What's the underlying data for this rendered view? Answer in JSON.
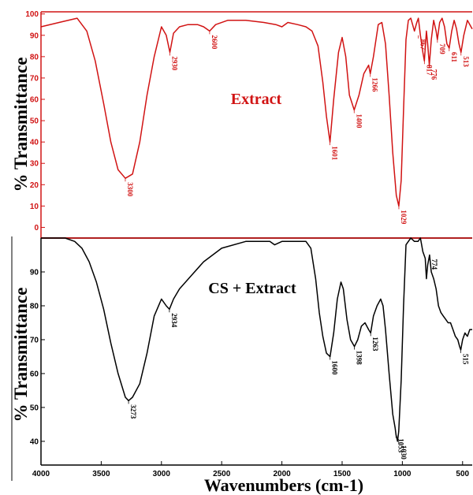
{
  "chart_data": [
    {
      "type": "line",
      "ylabel": "% Transmittance",
      "legend": "Extract",
      "color": "#d11313",
      "xlim": [
        4000,
        420
      ],
      "ylim": [
        -5,
        101
      ],
      "yticks": [
        0,
        10,
        20,
        30,
        40,
        50,
        60,
        70,
        80,
        90,
        100
      ],
      "grid": false,
      "series": [
        {
          "name": "Extract",
          "x": [
            4000,
            3850,
            3700,
            3620,
            3550,
            3480,
            3420,
            3360,
            3300,
            3240,
            3180,
            3120,
            3060,
            3000,
            2960,
            2930,
            2900,
            2850,
            2780,
            2700,
            2650,
            2600,
            2550,
            2450,
            2300,
            2150,
            2050,
            2000,
            1950,
            1870,
            1800,
            1750,
            1700,
            1660,
            1630,
            1601,
            1570,
            1530,
            1500,
            1470,
            1440,
            1400,
            1360,
            1320,
            1280,
            1266,
            1240,
            1200,
            1170,
            1140,
            1110,
            1080,
            1050,
            1029,
            1010,
            990,
            970,
            950,
            930,
            900,
            880,
            867,
            850,
            830,
            817,
            800,
            790,
            776,
            760,
            740,
            720,
            709,
            690,
            670,
            650,
            630,
            611,
            590,
            570,
            550,
            530,
            513,
            490,
            460,
            420
          ],
          "y": [
            94,
            96,
            98,
            92,
            78,
            58,
            40,
            27,
            23,
            25,
            40,
            62,
            80,
            94,
            90,
            82,
            91,
            94,
            95,
            95,
            94,
            92,
            95,
            97,
            97,
            96,
            95,
            94,
            96,
            95,
            94,
            92,
            85,
            68,
            52,
            40,
            60,
            82,
            89,
            80,
            62,
            55,
            62,
            72,
            76,
            72,
            80,
            95,
            96,
            86,
            62,
            35,
            15,
            10,
            22,
            55,
            88,
            97,
            98,
            92,
            96,
            98,
            90,
            82,
            78,
            92,
            86,
            76,
            88,
            97,
            92,
            88,
            96,
            98,
            94,
            86,
            84,
            92,
            97,
            93,
            86,
            82,
            90,
            97,
            93
          ]
        }
      ],
      "annotations": [
        {
          "x": 3300,
          "y": 23,
          "label": "3300"
        },
        {
          "x": 2930,
          "y": 82,
          "label": "2930"
        },
        {
          "x": 2600,
          "y": 92,
          "label": "2600"
        },
        {
          "x": 1601,
          "y": 40,
          "label": "1601"
        },
        {
          "x": 1400,
          "y": 55,
          "label": "1400"
        },
        {
          "x": 1266,
          "y": 72,
          "label": "1266"
        },
        {
          "x": 1029,
          "y": 10,
          "label": "1029"
        },
        {
          "x": 867,
          "y": 90,
          "label": "867"
        },
        {
          "x": 817,
          "y": 78,
          "label": "817"
        },
        {
          "x": 776,
          "y": 76,
          "label": "776"
        },
        {
          "x": 709,
          "y": 88,
          "label": "709"
        },
        {
          "x": 611,
          "y": 84,
          "label": "611"
        },
        {
          "x": 513,
          "y": 82,
          "label": "513"
        }
      ]
    },
    {
      "type": "line",
      "ylabel": "% Transmittance",
      "xlabel": "Wavenumbers (cm-1)",
      "legend": "CS + Extract",
      "color": "#000000",
      "xlim": [
        4000,
        420
      ],
      "ylim": [
        33,
        100
      ],
      "yticks": [
        40,
        50,
        60,
        70,
        80,
        90
      ],
      "xticks": [
        4000,
        3500,
        3000,
        2500,
        2000,
        1500,
        1000,
        500
      ],
      "grid": false,
      "series": [
        {
          "name": "CS + Extract",
          "x": [
            4000,
            3900,
            3800,
            3720,
            3660,
            3600,
            3540,
            3480,
            3420,
            3360,
            3300,
            3273,
            3240,
            3180,
            3120,
            3060,
            3000,
            2960,
            2934,
            2900,
            2850,
            2750,
            2650,
            2500,
            2300,
            2100,
            2060,
            2000,
            1940,
            1860,
            1800,
            1760,
            1720,
            1690,
            1660,
            1630,
            1600,
            1570,
            1540,
            1510,
            1490,
            1460,
            1430,
            1398,
            1370,
            1340,
            1310,
            1280,
            1263,
            1240,
            1210,
            1180,
            1160,
            1140,
            1110,
            1080,
            1060,
            1053,
            1040,
            1030,
            1010,
            990,
            970,
            950,
            930,
            900,
            870,
            850,
            830,
            810,
            800,
            790,
            774,
            760,
            740,
            720,
            700,
            680,
            660,
            640,
            620,
            600,
            580,
            560,
            540,
            525,
            515,
            500,
            480,
            460,
            440,
            420
          ],
          "y": [
            100,
            100,
            100,
            99,
            97,
            93,
            87,
            79,
            69,
            60,
            53,
            52,
            53,
            57,
            66,
            77,
            82,
            80,
            79,
            82,
            85,
            89,
            93,
            97,
            99,
            99,
            98,
            99,
            99,
            99,
            99,
            97,
            88,
            78,
            71,
            66,
            65,
            72,
            82,
            87,
            85,
            76,
            70,
            68,
            70,
            74,
            75,
            73,
            72,
            77,
            80,
            82,
            80,
            73,
            60,
            48,
            44,
            42,
            40,
            43,
            58,
            80,
            98,
            99,
            100,
            99,
            99,
            100,
            96,
            94,
            88,
            92,
            95,
            90,
            88,
            85,
            80,
            78,
            77,
            76,
            75,
            75,
            73,
            71,
            70,
            68,
            67,
            70,
            72,
            71,
            73,
            73
          ]
        }
      ],
      "annotations": [
        {
          "x": 3273,
          "y": 52,
          "label": "3273"
        },
        {
          "x": 2934,
          "y": 79,
          "label": "2934"
        },
        {
          "x": 1600,
          "y": 65,
          "label": "1600"
        },
        {
          "x": 1398,
          "y": 68,
          "label": "1398"
        },
        {
          "x": 1263,
          "y": 72,
          "label": "1263"
        },
        {
          "x": 1053,
          "y": 42,
          "label": "1053"
        },
        {
          "x": 1030,
          "y": 40,
          "label": "1030"
        },
        {
          "x": 774,
          "y": 95,
          "label": "774"
        },
        {
          "x": 515,
          "y": 67,
          "label": "515"
        }
      ]
    }
  ]
}
